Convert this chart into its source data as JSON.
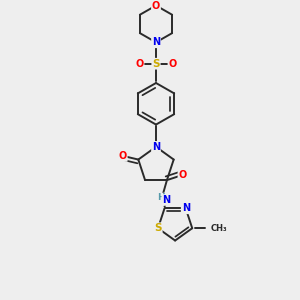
{
  "bg_color": "#eeeeee",
  "bond_color": "#2a2a2a",
  "atom_colors": {
    "O": "#ff0000",
    "N": "#0000ee",
    "S": "#ccaa00",
    "C": "#2a2a2a",
    "H": "#5599aa"
  },
  "scale": 1.0,
  "lw": 1.4
}
